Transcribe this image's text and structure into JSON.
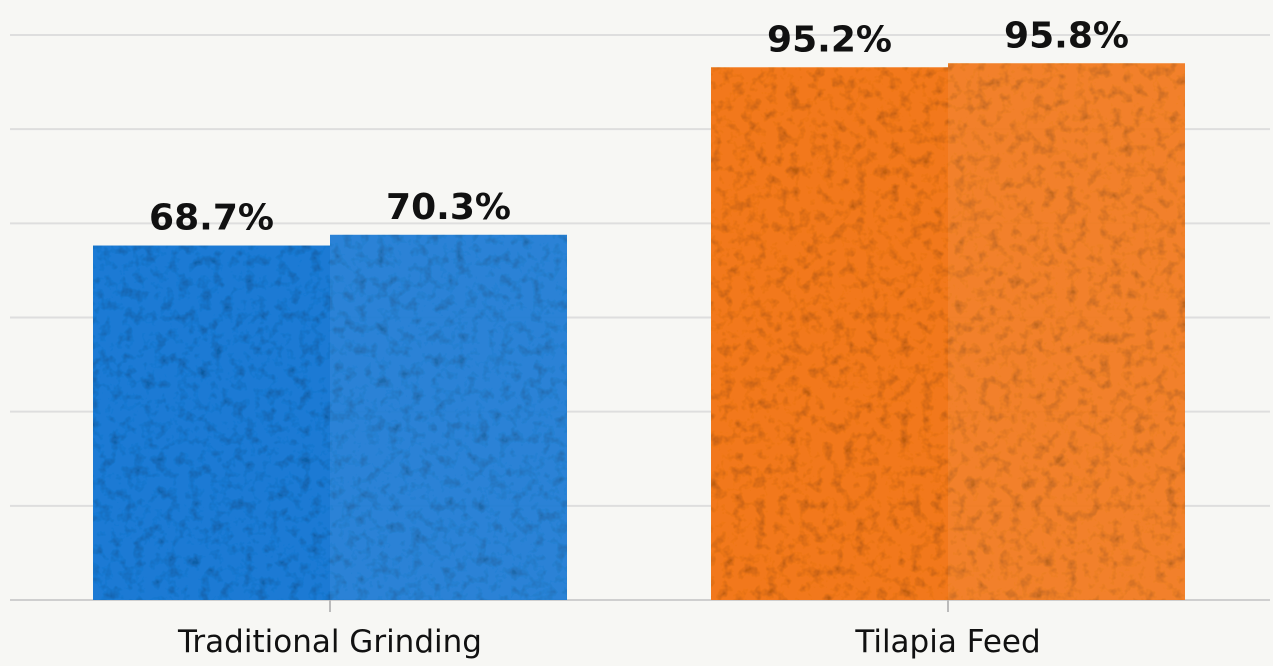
{
  "chart_data": {
    "type": "bar",
    "categories": [
      "Traditional Grinding",
      "Tilapia Feed"
    ],
    "series": [
      {
        "values": [
          68.7,
          95.2
        ]
      },
      {
        "values": [
          70.3,
          95.8
        ]
      }
    ],
    "data_labels": [
      [
        "68.7%",
        "95.2%"
      ],
      [
        "70.3%",
        "95.8%"
      ]
    ],
    "category_colors": [
      "#1f7ad4",
      "#f2781c"
    ],
    "title": "",
    "xlabel": "",
    "ylabel": "",
    "ylim": [
      16,
      100
    ],
    "grid": true,
    "legend": "none"
  }
}
